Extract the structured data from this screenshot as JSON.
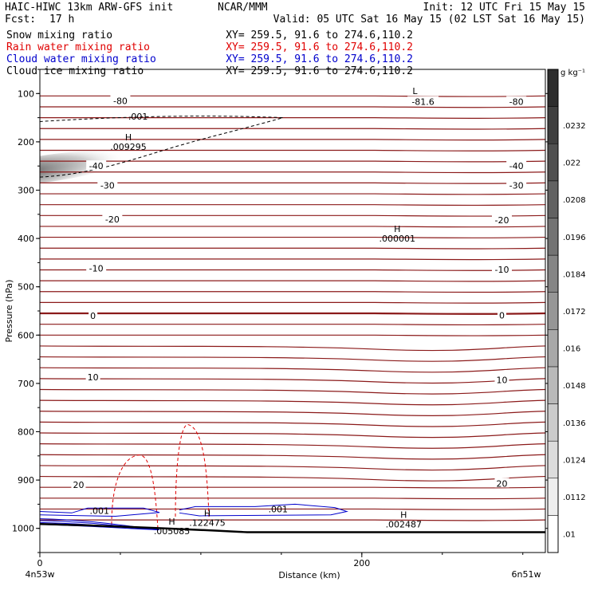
{
  "header": {
    "title": "HAIC-HIWC 13km ARW-GFS init",
    "org": "NCAR/MMM",
    "init": "Init: 12 UTC Fri 15 May 15",
    "fcst_label": "Fcst:",
    "fcst_value": "17 h",
    "valid": "Valid: 05 UTC Sat 16 May 15 (02 LST Sat 16 May 15)"
  },
  "fields": [
    {
      "name": "Snow mixing ratio",
      "xy": "XY= 259.5, 91.6 to 274.6,110.2",
      "color": "#000000"
    },
    {
      "name": "Rain water mixing ratio",
      "xy": "XY= 259.5, 91.6 to 274.6,110.2",
      "color": "#e00000"
    },
    {
      "name": "Cloud water mixing ratio",
      "xy": "XY= 259.5, 91.6 to 274.6,110.2",
      "color": "#0000cc"
    },
    {
      "name": "Cloud ice mixing ratio",
      "xy": "XY= 259.5, 91.6 to 274.6,110.2",
      "color": "#000000"
    }
  ],
  "chart_data": {
    "type": "cross-section",
    "xlabel": "Distance (km)",
    "ylabel": "Pressure (hPa)",
    "xlim": [
      0,
      314
    ],
    "ylim": [
      1050,
      50
    ],
    "x_ticks": [
      0,
      200
    ],
    "y_ticks": [
      100,
      200,
      300,
      400,
      500,
      600,
      700,
      800,
      900,
      1000
    ],
    "endpoints": {
      "left": "4n53w",
      "right": "6n51w"
    },
    "colorbar": {
      "unit": "g kg⁻¹",
      "ticks": [
        ".01",
        ".0112",
        ".0124",
        ".0136",
        ".0148",
        ".016",
        ".0172",
        ".0184",
        ".0196",
        ".0208",
        ".022",
        ".0232"
      ]
    },
    "temperature_labels": [
      {
        "text": "-80",
        "x": 50,
        "p": 115
      },
      {
        "text": "-81.6",
        "x": 238,
        "p": 117
      },
      {
        "text": "-80",
        "x": 296,
        "p": 117
      },
      {
        "text": "-40",
        "x": 35,
        "p": 250
      },
      {
        "text": "-40",
        "x": 296,
        "p": 250
      },
      {
        "text": "-30",
        "x": 42,
        "p": 290
      },
      {
        "text": "-30",
        "x": 296,
        "p": 290
      },
      {
        "text": "-20",
        "x": 45,
        "p": 360
      },
      {
        "text": "-20",
        "x": 287,
        "p": 362
      },
      {
        "text": "-10",
        "x": 35,
        "p": 462
      },
      {
        "text": "-10",
        "x": 287,
        "p": 464
      },
      {
        "text": "0",
        "x": 33,
        "p": 560
      },
      {
        "text": "0",
        "x": 287,
        "p": 559
      },
      {
        "text": "10",
        "x": 33,
        "p": 687
      },
      {
        "text": "10",
        "x": 287,
        "p": 693
      },
      {
        "text": "20",
        "x": 24,
        "p": 910
      },
      {
        "text": "20",
        "x": 287,
        "p": 907
      }
    ],
    "extrema": [
      {
        "mark": "L",
        "value": "",
        "x": 233,
        "p": 101,
        "color": "#000000"
      },
      {
        "mark": "H",
        "value": ".009295",
        "x": 55,
        "p": 197,
        "color": "#000000"
      },
      {
        "mark": "H",
        "value": ".000001",
        "x": 222,
        "p": 387,
        "color": "#000000"
      },
      {
        "mark": "H",
        "value": ".005085",
        "x": 82,
        "p": 992,
        "color": "#e00000"
      },
      {
        "mark": "H",
        "value": ".122475",
        "x": 104,
        "p": 975,
        "color": "#0000cc"
      },
      {
        "mark": "H",
        "value": ".002487",
        "x": 226,
        "p": 978,
        "color": "#0000cc"
      }
    ],
    "contour_labels": [
      {
        "text": ".001",
        "x": 61,
        "p": 147,
        "color": "#000000"
      },
      {
        "text": ".001",
        "x": 37,
        "p": 963,
        "color": "#0000cc"
      },
      {
        "text": ".001",
        "x": 148,
        "p": 960,
        "color": "#0000cc"
      }
    ]
  }
}
